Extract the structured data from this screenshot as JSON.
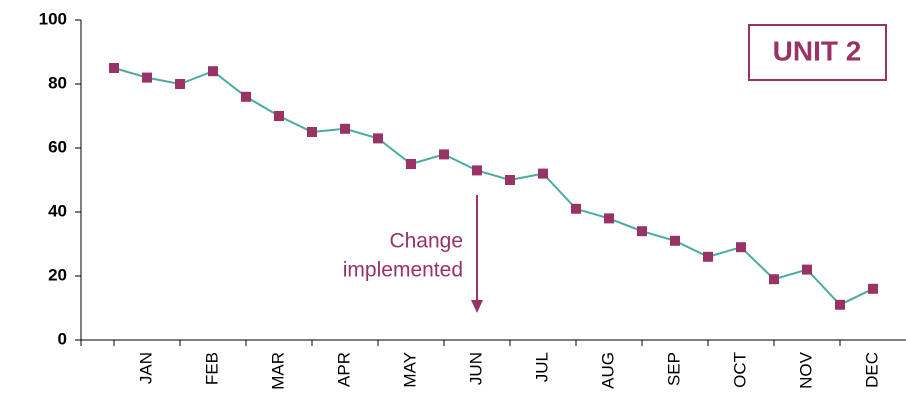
{
  "chart_data": {
    "type": "line",
    "title": "UNIT 2",
    "categories": [
      null,
      "JAN",
      null,
      "FEB",
      null,
      "MAR",
      null,
      "APR",
      null,
      "MAY",
      null,
      "JUN",
      null,
      "JUL",
      null,
      "AUG",
      null,
      "SEP",
      null,
      "OCT",
      null,
      "NOV",
      null,
      "DEC"
    ],
    "series": [
      {
        "color": "#4aaba0",
        "marker_color": "#993366",
        "values": [
          85,
          82,
          80,
          84,
          76,
          70,
          65,
          66,
          63,
          55,
          58,
          53,
          50,
          52,
          41,
          38,
          34,
          31,
          26,
          29,
          19,
          22,
          11,
          16
        ]
      }
    ],
    "ylim": [
      0,
      100
    ],
    "yticks": [
      0,
      20,
      40,
      60,
      80,
      100
    ],
    "annotation": {
      "lines": [
        "Change",
        "implemented"
      ],
      "color": "#993366"
    }
  }
}
